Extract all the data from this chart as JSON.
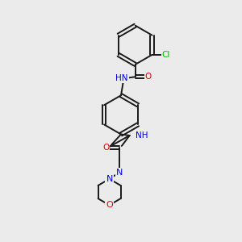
{
  "background_color": "#ebebeb",
  "bond_color": "#1a1a1a",
  "atom_colors": {
    "N": "#0000ee",
    "O": "#ee0000",
    "Cl": "#00bb00",
    "C": "#1a1a1a"
  },
  "figsize": [
    3.0,
    3.0
  ],
  "dpi": 100
}
